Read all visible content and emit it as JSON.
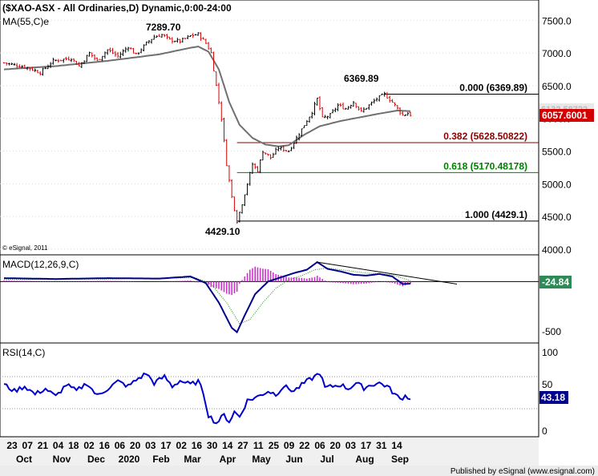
{
  "colors": {
    "bg": "#ffffff",
    "frame": "#000000",
    "grid": "#d8d8d8",
    "up": "#000000",
    "down": "#d40000",
    "ma": "#707070",
    "fib_mid": "#8b0000",
    "fib_618": "#008000",
    "macd_line": "#00008b",
    "macd_hist": "#cc33cc",
    "macd_signal": "#228b22",
    "rsi_line": "#0000cc",
    "tag_last": "#d40000",
    "tag_macd": "#2e8b57",
    "tag_rsi": "#00008b",
    "axis_strip": "#f0f0f0",
    "footer_bg": "#ececec"
  },
  "main": {
    "title": "($XAO-ASX - All Ordinaries,D) Dynamic,0:00-24:00",
    "ma_label": "MA(55,C)e",
    "copyright": "© eSignal, 2011",
    "peak_label": "7289.70",
    "low_label": "4429.10",
    "swing_high_label": "6369.89",
    "last_price_label": "6057.6001",
    "hidden_tag_label": "6132.58722",
    "price_ticks": [
      "7500.0",
      "7000.0",
      "6500.0",
      "6000.0",
      "5500.0",
      "5000.0",
      "4500.0",
      "4000.0"
    ],
    "fib_levels": [
      {
        "label": "0.000 (6369.89)",
        "value": 6369.89
      },
      {
        "label": "0.382 (5628.50822)",
        "value": 5628.50822
      },
      {
        "label": "0.618 (5170.48178)",
        "value": 5170.48178
      },
      {
        "label": "1.000 (4429.1)",
        "value": 4429.1
      }
    ]
  },
  "macd": {
    "label": "MACD(12,26,9,C)",
    "value_label": "-24.84",
    "ticks": [
      "-500"
    ]
  },
  "rsi": {
    "label": "RSI(14,C)",
    "value_label": "43.18",
    "ticks": [
      "100",
      "50",
      "0"
    ]
  },
  "xaxis": {
    "day_labels": [
      "23",
      "07",
      "21",
      "04",
      "18",
      "02",
      "16",
      "06",
      "20",
      "03",
      "17",
      "02",
      "16",
      "30",
      "14",
      "27",
      "11",
      "25",
      "09",
      "22",
      "06",
      "20",
      "03",
      "17",
      "31",
      "14"
    ],
    "month_labels": [
      "Oct",
      "Nov",
      "Dec",
      "2020",
      "Feb",
      "Mar",
      "Apr",
      "May",
      "Jun",
      "Jul",
      "Aug",
      "Sep"
    ]
  },
  "footer": "Published by eSignal (www.esignal.com)",
  "chart_data": {
    "type": "line",
    "title": "($XAO-ASX - All Ordinaries,D) Dynamic,0:00-24:00",
    "price_keypoints": [
      [
        0,
        6850
      ],
      [
        9,
        6780
      ],
      [
        14,
        6700
      ],
      [
        19,
        6880
      ],
      [
        26,
        6920
      ],
      [
        29,
        6800
      ],
      [
        33,
        7000
      ],
      [
        36,
        6880
      ],
      [
        40,
        7050
      ],
      [
        44,
        6950
      ],
      [
        48,
        7100
      ],
      [
        51,
        6970
      ],
      [
        55,
        7150
      ],
      [
        58,
        7250
      ],
      [
        61,
        7280
      ],
      [
        64,
        7200
      ],
      [
        68,
        7180
      ],
      [
        72,
        7260
      ],
      [
        75,
        7290
      ],
      [
        78,
        7150
      ],
      [
        80,
        7000
      ],
      [
        82,
        6500
      ],
      [
        84,
        6000
      ],
      [
        86,
        5300
      ],
      [
        88,
        4800
      ],
      [
        90,
        4429
      ],
      [
        92,
        4700
      ],
      [
        94,
        5000
      ],
      [
        96,
        5300
      ],
      [
        98,
        5200
      ],
      [
        100,
        5500
      ],
      [
        103,
        5400
      ],
      [
        106,
        5550
      ],
      [
        110,
        5500
      ],
      [
        113,
        5700
      ],
      [
        116,
        5900
      ],
      [
        119,
        6100
      ],
      [
        121,
        6300
      ],
      [
        123,
        6000
      ],
      [
        126,
        6050
      ],
      [
        129,
        6200
      ],
      [
        132,
        6150
      ],
      [
        135,
        6250
      ],
      [
        138,
        6100
      ],
      [
        141,
        6200
      ],
      [
        144,
        6300
      ],
      [
        147,
        6370
      ],
      [
        150,
        6250
      ],
      [
        152,
        6150
      ],
      [
        154,
        6050
      ],
      [
        156,
        6080
      ],
      [
        157,
        6057
      ]
    ],
    "ma55_keypoints": [
      [
        0,
        6750
      ],
      [
        20,
        6800
      ],
      [
        40,
        6880
      ],
      [
        60,
        6980
      ],
      [
        72,
        7080
      ],
      [
        75,
        7100
      ],
      [
        79,
        7020
      ],
      [
        83,
        6750
      ],
      [
        87,
        6250
      ],
      [
        91,
        5900
      ],
      [
        96,
        5700
      ],
      [
        101,
        5600
      ],
      [
        106,
        5570
      ],
      [
        110,
        5590
      ],
      [
        116,
        5750
      ],
      [
        122,
        5880
      ],
      [
        130,
        5960
      ],
      [
        138,
        6020
      ],
      [
        146,
        6080
      ],
      [
        152,
        6120
      ],
      [
        157,
        6110
      ]
    ],
    "macd_keypoints": [
      [
        0,
        40
      ],
      [
        20,
        30
      ],
      [
        40,
        40
      ],
      [
        60,
        35
      ],
      [
        72,
        60
      ],
      [
        78,
        -20
      ],
      [
        83,
        -250
      ],
      [
        88,
        -550
      ],
      [
        90,
        -600
      ],
      [
        93,
        -400
      ],
      [
        97,
        -150
      ],
      [
        102,
        0
      ],
      [
        108,
        60
      ],
      [
        112,
        100
      ],
      [
        117,
        140
      ],
      [
        121,
        230
      ],
      [
        125,
        150
      ],
      [
        130,
        120
      ],
      [
        135,
        80
      ],
      [
        140,
        70
      ],
      [
        145,
        90
      ],
      [
        150,
        60
      ],
      [
        154,
        -30
      ],
      [
        157,
        -24.84
      ]
    ],
    "signal_keypoints": [
      [
        0,
        25
      ],
      [
        40,
        30
      ],
      [
        74,
        45
      ],
      [
        80,
        -30
      ],
      [
        86,
        -250
      ],
      [
        91,
        -500
      ],
      [
        95,
        -450
      ],
      [
        100,
        -250
      ],
      [
        105,
        -80
      ],
      [
        110,
        20
      ],
      [
        115,
        70
      ],
      [
        120,
        140
      ],
      [
        125,
        160
      ],
      [
        130,
        140
      ],
      [
        140,
        100
      ],
      [
        150,
        80
      ],
      [
        157,
        10
      ]
    ],
    "rsi_keypoints": [
      [
        0,
        60
      ],
      [
        4,
        52
      ],
      [
        8,
        58
      ],
      [
        12,
        48
      ],
      [
        16,
        55
      ],
      [
        20,
        45
      ],
      [
        24,
        60
      ],
      [
        28,
        52
      ],
      [
        32,
        62
      ],
      [
        36,
        46
      ],
      [
        40,
        55
      ],
      [
        44,
        64
      ],
      [
        48,
        58
      ],
      [
        52,
        68
      ],
      [
        55,
        74
      ],
      [
        58,
        62
      ],
      [
        62,
        70
      ],
      [
        65,
        58
      ],
      [
        68,
        65
      ],
      [
        72,
        60
      ],
      [
        75,
        64
      ],
      [
        77,
        50
      ],
      [
        79,
        22
      ],
      [
        82,
        12
      ],
      [
        85,
        22
      ],
      [
        87,
        14
      ],
      [
        89,
        26
      ],
      [
        91,
        20
      ],
      [
        94,
        40
      ],
      [
        98,
        45
      ],
      [
        102,
        52
      ],
      [
        105,
        48
      ],
      [
        108,
        58
      ],
      [
        112,
        52
      ],
      [
        116,
        62
      ],
      [
        120,
        70
      ],
      [
        122,
        75
      ],
      [
        124,
        56
      ],
      [
        127,
        58
      ],
      [
        130,
        60
      ],
      [
        133,
        55
      ],
      [
        136,
        62
      ],
      [
        139,
        56
      ],
      [
        142,
        60
      ],
      [
        145,
        62
      ],
      [
        148,
        58
      ],
      [
        151,
        48
      ],
      [
        153,
        42
      ],
      [
        155,
        46
      ],
      [
        157,
        43.18
      ]
    ],
    "price_range": [
      3900,
      7750
    ],
    "macd_range": [
      -700,
      250
    ],
    "rsi_range": [
      0,
      100
    ]
  }
}
